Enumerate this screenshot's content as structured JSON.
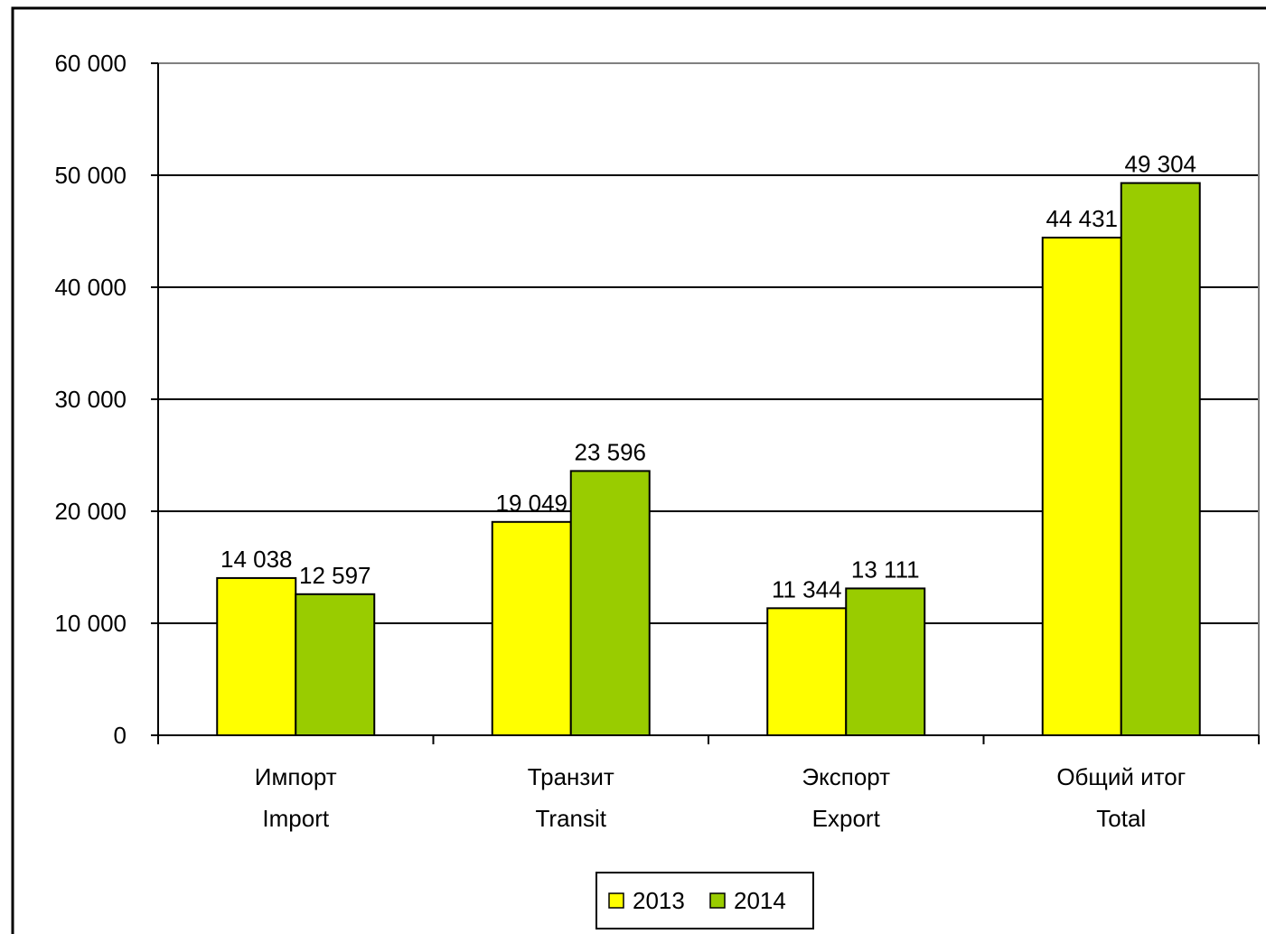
{
  "chart_data": {
    "type": "bar",
    "categories": [
      [
        "Импорт",
        "Import"
      ],
      [
        "Транзит",
        "Transit"
      ],
      [
        "Экспорт",
        "Export"
      ],
      [
        "Общий итог",
        "Total"
      ]
    ],
    "series": [
      {
        "name": "2013",
        "color": "#ffff00",
        "values": [
          14038,
          19049,
          11344,
          44431
        ],
        "labels": [
          "14 038",
          "19 049",
          "11 344",
          "44 431"
        ]
      },
      {
        "name": "2014",
        "color": "#99cc00",
        "values": [
          12597,
          23596,
          13111,
          49304
        ],
        "labels": [
          "12 597",
          "23 596",
          "13 111",
          "49 304"
        ]
      }
    ],
    "ylim": [
      0,
      60000
    ],
    "y_ticks": [
      0,
      10000,
      20000,
      30000,
      40000,
      50000,
      60000
    ],
    "y_tick_labels": [
      "0",
      "10 000",
      "20 000",
      "30 000",
      "40 000",
      "50 000",
      "60 000"
    ],
    "grid": true,
    "legend": {
      "position": "bottom",
      "entries": [
        "2013",
        "2014"
      ]
    },
    "title": "",
    "xlabel": "",
    "ylabel": ""
  }
}
